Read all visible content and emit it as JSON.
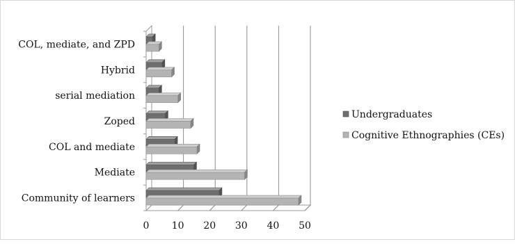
{
  "chart_data": {
    "type": "bar",
    "orientation": "horizontal",
    "style": "3d-clustered",
    "categories": [
      "COL, mediate, and ZPD",
      "Hybrid",
      "serial mediation",
      "Zoped",
      "COL and mediate",
      "Mediate",
      "Community of learners"
    ],
    "series": [
      {
        "name": "Undergraduates",
        "values": [
          2,
          5,
          4,
          6,
          9,
          15,
          23
        ],
        "color": "#6e6e6e"
      },
      {
        "name": "Cognitive Ethnographies (CEs)",
        "values": [
          4,
          8,
          10,
          14,
          16,
          31,
          48
        ],
        "color": "#b4b4b4"
      }
    ],
    "xlim": [
      0,
      50
    ],
    "xticks": [
      "0",
      "10",
      "20",
      "30",
      "40",
      "50"
    ],
    "grid": true,
    "legend": "right",
    "title": "",
    "xlabel": "",
    "ylabel": ""
  }
}
